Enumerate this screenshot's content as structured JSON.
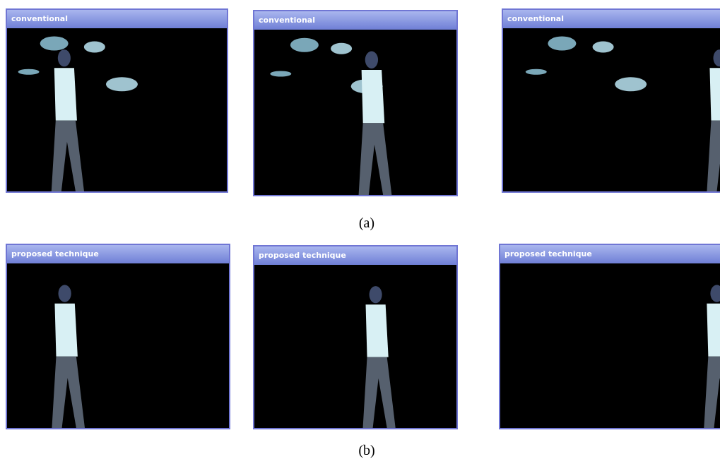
{
  "panels": [
    {
      "caption": "(a)",
      "windows": [
        {
          "title": "conventional"
        },
        {
          "title": "conventional"
        },
        {
          "title": "conventional"
        }
      ]
    },
    {
      "caption": "(b)",
      "windows": [
        {
          "title": "proposed technique"
        },
        {
          "title": "proposed technique"
        },
        {
          "title": "proposed technique"
        }
      ]
    }
  ]
}
